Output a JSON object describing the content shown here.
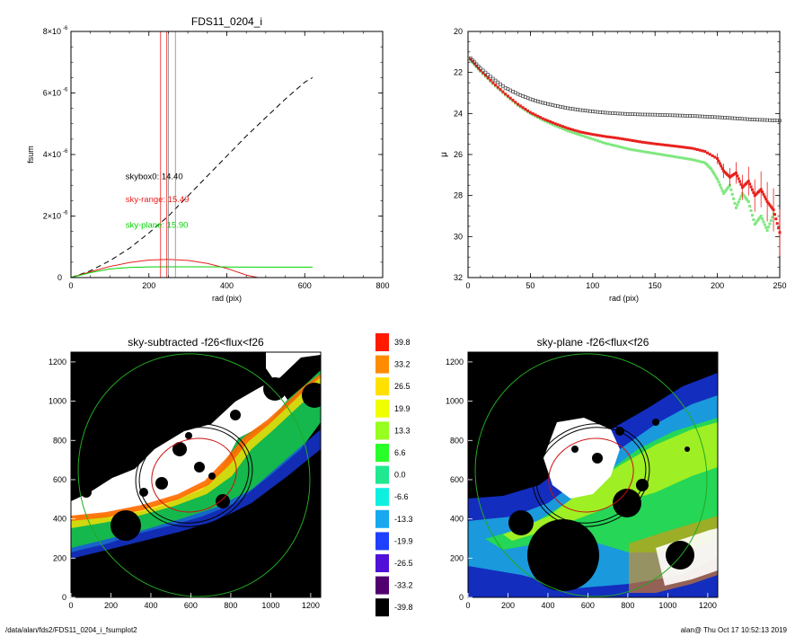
{
  "footer": {
    "path": "/data/alan/fds2/FDS11_0204_i_fsumplot2",
    "stamp": "alan@  Thu Oct 17 10:52:13 2019"
  },
  "chart_data": [
    {
      "id": "fsum",
      "type": "line",
      "title": "FDS11_0204_i",
      "xlabel": "rad (pix)",
      "ylabel": "fsum",
      "xlim": [
        0,
        800
      ],
      "ylim": [
        0,
        8e-06
      ],
      "xticks": [
        0,
        200,
        400,
        600,
        800
      ],
      "yticks": [
        {
          "v": 0,
          "base": "0",
          "exp": ""
        },
        {
          "v": 2e-06,
          "base": "2×10",
          "exp": "-6"
        },
        {
          "v": 4e-06,
          "base": "4×10",
          "exp": "-6"
        },
        {
          "v": 6e-06,
          "base": "6×10",
          "exp": "-6"
        },
        {
          "v": 8e-06,
          "base": "8×10",
          "exp": "-6"
        }
      ],
      "annotations": [
        {
          "text": "skybox0: 14.40",
          "color": "#000000",
          "x": 140,
          "y": 3.2e-06
        },
        {
          "text": "sky-range: 15.49",
          "color": "#e8201c",
          "x": 140,
          "y": 2.45e-06
        },
        {
          "text": "sky-plane: 15.90",
          "color": "#00d200",
          "x": 140,
          "y": 1.62e-06
        }
      ],
      "vlines": [
        {
          "x": 230,
          "color": "#e8201c"
        },
        {
          "x": 246,
          "color": "#e8201c"
        },
        {
          "x": 250,
          "color": "#888888"
        },
        {
          "x": 268,
          "color": "#888888"
        }
      ],
      "series": [
        {
          "style": "dashed",
          "color": "#000000",
          "x": [
            0,
            50,
            100,
            150,
            200,
            250,
            300,
            350,
            400,
            450,
            500,
            550,
            600,
            620
          ],
          "y": [
            0,
            2.2e-07,
            5.5e-07,
            9.5e-07,
            1.45e-06,
            2e-06,
            2.65e-06,
            3.3e-06,
            3.95e-06,
            4.6e-06,
            5.2e-06,
            5.8e-06,
            6.35e-06,
            6.5e-06
          ]
        },
        {
          "style": "solid",
          "color": "#e8201c",
          "x": [
            0,
            50,
            100,
            150,
            200,
            250,
            300,
            350,
            400,
            450,
            480
          ],
          "y": [
            0,
            1.9e-07,
            3.6e-07,
            4.9e-07,
            5.7e-07,
            5.9e-07,
            5.6e-07,
            4.6e-07,
            3e-07,
            8e-08,
            0
          ]
        },
        {
          "style": "solid",
          "color": "#00d200",
          "x": [
            0,
            50,
            100,
            150,
            200,
            250,
            300,
            400,
            500,
            620
          ],
          "y": [
            0,
            1.6e-07,
            2.8e-07,
            3.3e-07,
            3.45e-07,
            3.5e-07,
            3.5e-07,
            3.45e-07,
            3.4e-07,
            3.4e-07
          ]
        }
      ]
    },
    {
      "id": "mu",
      "type": "scatter",
      "title": "",
      "xlabel": "rad (pix)",
      "ylabel": "μ",
      "xlim": [
        0,
        250
      ],
      "ylim": [
        32,
        20
      ],
      "xticks": [
        0,
        50,
        100,
        150,
        200,
        250
      ],
      "yticks": [
        20,
        22,
        24,
        26,
        28,
        30,
        32
      ],
      "series": [
        {
          "color": "#444444",
          "marker": "open-square",
          "x": [
            2,
            10,
            20,
            30,
            40,
            50,
            60,
            70,
            80,
            90,
            100,
            110,
            120,
            130,
            140,
            150,
            160,
            170,
            180,
            190,
            200,
            210,
            220,
            230,
            240,
            250
          ],
          "y": [
            21.3,
            21.8,
            22.3,
            22.75,
            23.05,
            23.3,
            23.48,
            23.62,
            23.74,
            23.83,
            23.9,
            23.96,
            24.0,
            24.03,
            24.05,
            24.06,
            24.08,
            24.1,
            24.12,
            24.15,
            24.18,
            24.22,
            24.26,
            24.3,
            24.32,
            24.35
          ]
        },
        {
          "color": "#e8201c",
          "marker": "filled-square",
          "x": [
            2,
            10,
            20,
            30,
            40,
            50,
            60,
            70,
            80,
            90,
            100,
            110,
            120,
            130,
            140,
            150,
            160,
            170,
            180,
            190,
            200,
            205,
            210,
            215,
            220,
            225,
            230,
            235,
            240,
            245,
            250
          ],
          "y": [
            21.35,
            21.9,
            22.5,
            23.05,
            23.55,
            23.95,
            24.25,
            24.5,
            24.72,
            24.9,
            25.02,
            25.12,
            25.2,
            25.3,
            25.4,
            25.48,
            25.55,
            25.62,
            25.7,
            25.85,
            26.2,
            26.8,
            27.1,
            26.9,
            27.6,
            27.3,
            28.0,
            27.7,
            28.3,
            28.7,
            29.8
          ]
        },
        {
          "color": "#7ee87e",
          "marker": "filled-square",
          "x": [
            2,
            10,
            20,
            30,
            40,
            50,
            60,
            70,
            80,
            90,
            100,
            110,
            120,
            130,
            140,
            150,
            160,
            170,
            180,
            190,
            195,
            200,
            205,
            210,
            215,
            220,
            225,
            230,
            235,
            240,
            245
          ],
          "y": [
            21.4,
            21.95,
            22.55,
            23.1,
            23.6,
            24.0,
            24.32,
            24.6,
            24.85,
            25.05,
            25.25,
            25.45,
            25.6,
            25.75,
            25.85,
            25.95,
            26.05,
            26.15,
            26.25,
            26.4,
            26.7,
            27.2,
            27.9,
            27.5,
            28.6,
            27.9,
            28.3,
            29.4,
            29.0,
            29.7,
            28.9
          ]
        }
      ]
    },
    {
      "id": "img1",
      "type": "heatmap",
      "title": "sky-subtracted -f26<flux<f26",
      "xlim": [
        0,
        1250
      ],
      "ylim": [
        0,
        1250
      ],
      "xticks": [
        0,
        200,
        400,
        600,
        800,
        1000,
        1200
      ],
      "yticks": [
        0,
        200,
        400,
        600,
        800,
        1000,
        1200
      ]
    },
    {
      "id": "img2",
      "type": "heatmap",
      "title": "sky-plane -f26<flux<f26",
      "xlim": [
        0,
        1250
      ],
      "ylim": [
        0,
        1250
      ],
      "xticks": [
        0,
        200,
        400,
        600,
        800,
        1000,
        1200
      ],
      "yticks": [
        0,
        200,
        400,
        600,
        800,
        1000,
        1200
      ]
    },
    {
      "id": "colorbar",
      "type": "table",
      "levels": [
        {
          "label": "39.8",
          "color": "#ff1a00"
        },
        {
          "label": "33.2",
          "color": "#ff8c00"
        },
        {
          "label": "26.5",
          "color": "#ffe000"
        },
        {
          "label": "19.9",
          "color": "#f0ff00"
        },
        {
          "label": "13.3",
          "color": "#96ff1e"
        },
        {
          "label": "6.6",
          "color": "#28ff28"
        },
        {
          "label": "0.0",
          "color": "#1fe890"
        },
        {
          "label": "-6.6",
          "color": "#10f0e0"
        },
        {
          "label": "-13.3",
          "color": "#18a8f0"
        },
        {
          "label": "-19.9",
          "color": "#2040ff"
        },
        {
          "label": "-26.5",
          "color": "#5010d8"
        },
        {
          "label": "-33.2",
          "color": "#500070"
        },
        {
          "label": "-39.8",
          "color": "#000000"
        }
      ]
    }
  ]
}
